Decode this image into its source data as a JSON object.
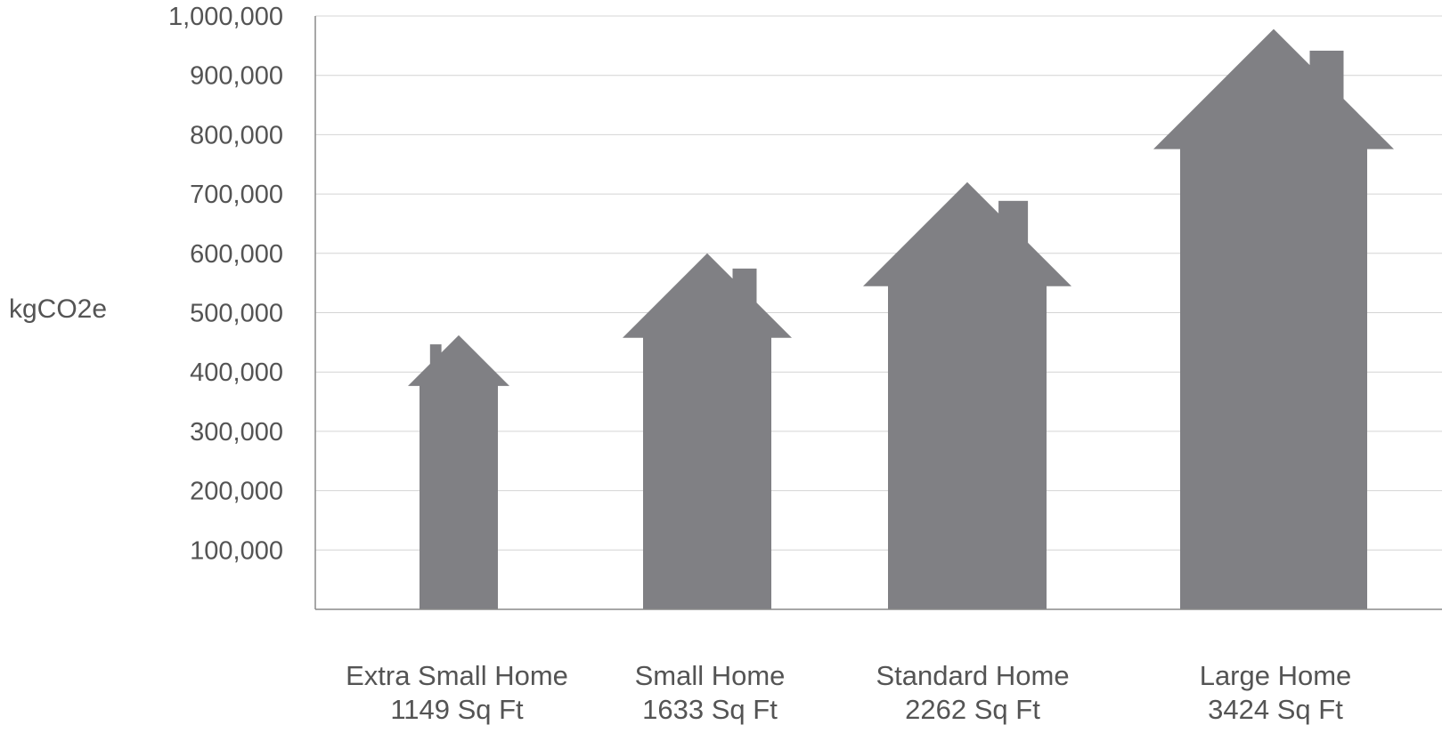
{
  "chart_data": {
    "type": "bar",
    "mark_shape": "house",
    "ylabel": "kgCO2e",
    "ylim": [
      0,
      1000000
    ],
    "yticks": [
      100000,
      200000,
      300000,
      400000,
      500000,
      600000,
      700000,
      800000,
      900000,
      1000000
    ],
    "ytick_labels": [
      "100,000",
      "200,000",
      "300,000",
      "400,000",
      "500,000",
      "600,000",
      "700,000",
      "800,000",
      "900,000",
      "1,000,000"
    ],
    "grid": true,
    "categories": [
      {
        "name": "Extra Small Home",
        "size": "1149 Sq Ft"
      },
      {
        "name": "Small Home",
        "size": "1633 Sq Ft"
      },
      {
        "name": "Standard Home",
        "size": "2262 Sq Ft"
      },
      {
        "name": "Large Home",
        "size": "3424 Sq Ft"
      }
    ],
    "values": [
      462000,
      600000,
      720000,
      978000
    ],
    "colors": {
      "bar": "#808084",
      "grid": "#d4d4d4",
      "axis": "#8a8a8a",
      "text": "#545454"
    }
  }
}
